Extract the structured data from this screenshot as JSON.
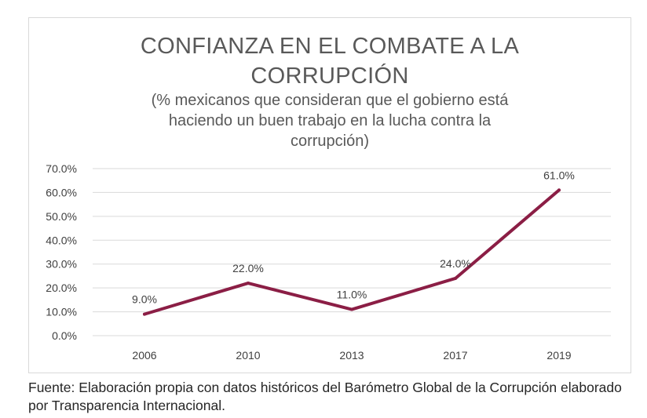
{
  "source_note": "Fuente: Elaboración propia con datos históricos del Barómetro Global de la Corrupción elaborado por Transparencia Internacional.",
  "chart_data": {
    "type": "line",
    "title_line1": "CONFIANZA EN EL COMBATE A LA",
    "title_line2": "CORRUPCIÓN",
    "subtitle_line1": "(% mexicanos que consideran que el gobierno está",
    "subtitle_line2": "haciendo un buen trabajo en la lucha contra la",
    "subtitle_line3": "corrupción)",
    "categories": [
      "2006",
      "2010",
      "2013",
      "2017",
      "2019"
    ],
    "values": [
      9.0,
      22.0,
      11.0,
      24.0,
      61.0
    ],
    "data_labels": [
      "9.0%",
      "22.0%",
      "11.0%",
      "24.0%",
      "61.0%"
    ],
    "y_ticks": [
      "0.0%",
      "10.0%",
      "20.0%",
      "30.0%",
      "40.0%",
      "50.0%",
      "60.0%",
      "70.0%"
    ],
    "ylim": [
      0,
      70
    ],
    "grid": true,
    "line_color": "#8b1e45",
    "xlabel": "",
    "ylabel": ""
  }
}
